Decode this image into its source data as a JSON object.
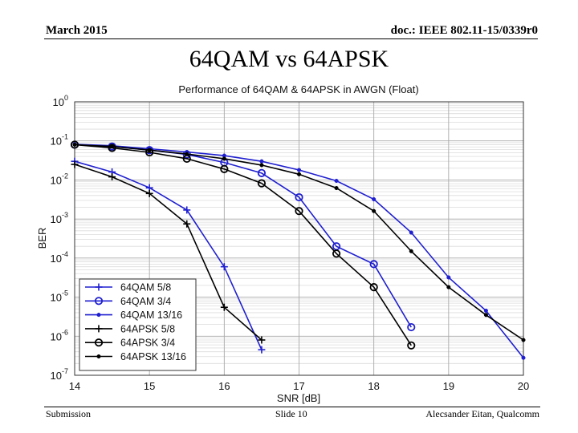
{
  "header": {
    "date": "March 2015",
    "doc_id": "doc.: IEEE 802.11-15/0339r0"
  },
  "slide_title": "64QAM vs 64APSK",
  "footer": {
    "left": "Submission",
    "center": "Slide 10",
    "right": "Alecsander Eitan, Qualcomm"
  },
  "chart_data": {
    "type": "line",
    "title": "Performance of 64QAM & 64APSK in AWGN (Float)",
    "xlabel": "SNR [dB]",
    "ylabel": "BER",
    "x_ticks": [
      14,
      15,
      16,
      17,
      18,
      19,
      20
    ],
    "xlim": [
      14,
      20
    ],
    "y_scale": "log",
    "ylim": [
      1e-07,
      1
    ],
    "y_ticks": [
      {
        "base": "10",
        "exp": "0"
      },
      {
        "base": "10",
        "exp": "-1"
      },
      {
        "base": "10",
        "exp": "-2"
      },
      {
        "base": "10",
        "exp": "-3"
      },
      {
        "base": "10",
        "exp": "-4"
      },
      {
        "base": "10",
        "exp": "-5"
      },
      {
        "base": "10",
        "exp": "-6"
      },
      {
        "base": "10",
        "exp": "-7"
      }
    ],
    "grid": true,
    "legend_position": "bottom-left",
    "series": [
      {
        "name": "64QAM 5/8",
        "color": "#1f1fd0",
        "marker": "plus",
        "x": [
          14,
          14.5,
          15,
          15.5,
          16,
          16.5
        ],
        "y": [
          0.03,
          0.016,
          0.0063,
          0.0017,
          6e-05,
          4.5e-07
        ]
      },
      {
        "name": "64QAM 3/4",
        "color": "#1f1fd0",
        "marker": "circle",
        "x": [
          14,
          14.5,
          15,
          15.5,
          16,
          16.5,
          17,
          17.5,
          18,
          18.5
        ],
        "y": [
          0.08,
          0.072,
          0.058,
          0.045,
          0.028,
          0.015,
          0.0036,
          0.0002,
          7e-05,
          1.7e-06
        ]
      },
      {
        "name": "64QAM 13/16",
        "color": "#1f1fd0",
        "marker": "dot",
        "x": [
          14,
          14.5,
          15,
          15.5,
          16,
          16.5,
          17,
          17.5,
          18,
          18.5,
          19,
          19.5,
          20
        ],
        "y": [
          0.082,
          0.075,
          0.063,
          0.052,
          0.042,
          0.03,
          0.018,
          0.0095,
          0.0032,
          0.00045,
          3.2e-05,
          4.5e-06,
          2.8e-07
        ]
      },
      {
        "name": "64APSK 5/8",
        "color": "#000000",
        "marker": "plus",
        "x": [
          14,
          14.5,
          15,
          15.5,
          16,
          16.5
        ],
        "y": [
          0.025,
          0.012,
          0.0045,
          0.00075,
          5.5e-06,
          8e-07
        ]
      },
      {
        "name": "64APSK 3/4",
        "color": "#000000",
        "marker": "circle",
        "x": [
          14,
          14.5,
          15,
          15.5,
          16,
          16.5,
          17,
          17.5,
          18,
          18.5
        ],
        "y": [
          0.08,
          0.066,
          0.051,
          0.035,
          0.019,
          0.0082,
          0.0016,
          0.00013,
          1.8e-05,
          5.8e-07
        ]
      },
      {
        "name": "64APSK 13/16",
        "color": "#000000",
        "marker": "dot",
        "x": [
          14,
          14.5,
          15,
          15.5,
          16,
          16.5,
          17,
          17.5,
          18,
          18.5,
          19,
          19.5,
          20
        ],
        "y": [
          0.08,
          0.072,
          0.058,
          0.046,
          0.035,
          0.024,
          0.014,
          0.0062,
          0.0016,
          0.00015,
          1.8e-05,
          3.5e-06,
          8e-07
        ]
      }
    ]
  }
}
